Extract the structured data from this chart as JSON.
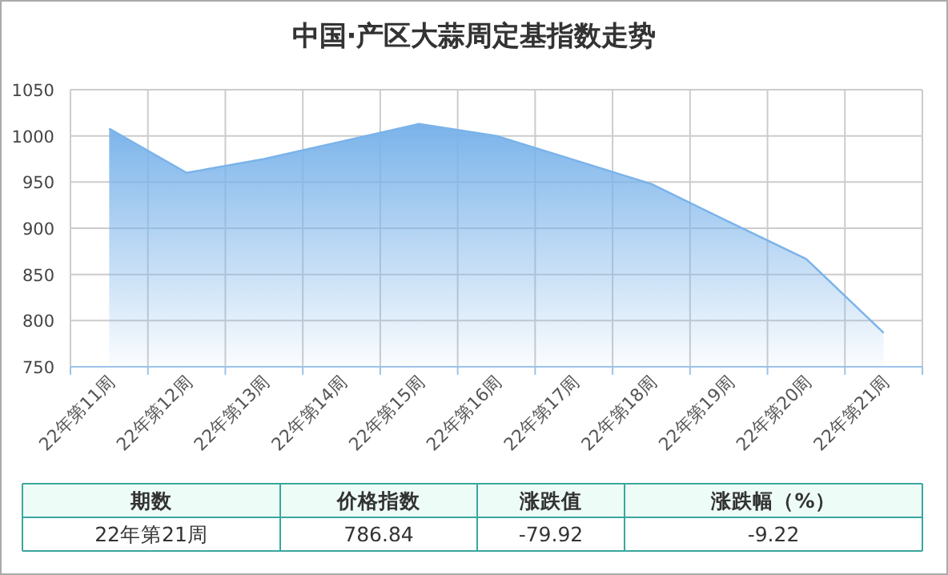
{
  "chart_data": {
    "type": "area",
    "title": "中国·产区大蒜周定基指数走势",
    "categories": [
      "22年第11周",
      "22年第12周",
      "22年第13周",
      "22年第14周",
      "22年第15周",
      "22年第16周",
      "22年第17周",
      "22年第18周",
      "22年第19周",
      "22年第20周",
      "22年第21周"
    ],
    "series": [
      {
        "color": "#7ab3ea",
        "values": [
          1008,
          960,
          975,
          994,
          1013,
          1000,
          974,
          948,
          907,
          866.76,
          786.84
        ]
      }
    ],
    "ylim": [
      750,
      1050
    ],
    "yticks": [
      750,
      800,
      850,
      900,
      950,
      1000,
      1050
    ],
    "grid": true,
    "annotations": [
      "期数",
      "价格指数",
      "涨跌值",
      "涨跌幅（%）",
      "22年第21周",
      "786.84",
      "-79.92",
      "-9.22"
    ]
  }
}
